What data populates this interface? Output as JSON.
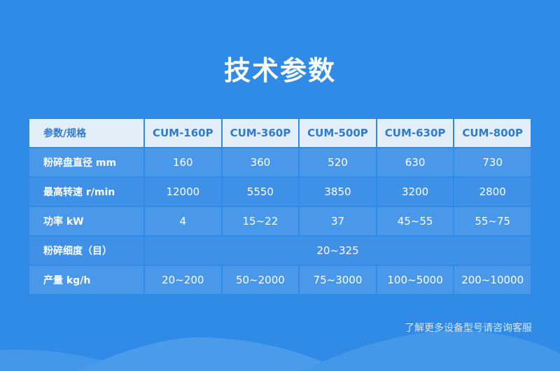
{
  "title": "技术参数",
  "table": {
    "headers": [
      "参数/规格",
      "CUM-160P",
      "CUM-360P",
      "CUM-500P",
      "CUM-630P",
      "CUM-800P"
    ],
    "rows": [
      {
        "label": "粉碎盘直径 mm",
        "values": [
          "160",
          "360",
          "520",
          "630",
          "730"
        ]
      },
      {
        "label": "最高转速 r/min",
        "values": [
          "12000",
          "5550",
          "3850",
          "3200",
          "2800"
        ]
      },
      {
        "label": "功率 kW",
        "values": [
          "4",
          "15~22",
          "37",
          "45~55",
          "55~75"
        ]
      },
      {
        "label": "粉碎细度（目）",
        "span_value": "20~325"
      },
      {
        "label": "产量 kg/h",
        "values": [
          "20~200",
          "50~2000",
          "75~3000",
          "100~5000",
          "200~10000"
        ]
      }
    ]
  },
  "note": "了解更多设备型号请咨询客服",
  "colors": {
    "background": "#2f8be6",
    "header_bg": "#e3eef9",
    "header_text": "#2f7bd0"
  }
}
